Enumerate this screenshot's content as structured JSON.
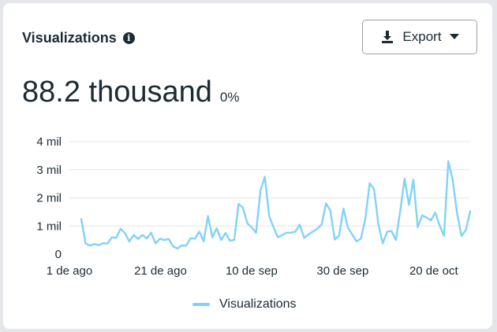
{
  "header": {
    "title": "Visualizations",
    "export_label": "Export"
  },
  "summary": {
    "value": "88.2 thousand",
    "change": "0%"
  },
  "colors": {
    "line": "#82d2f7",
    "grid": "#e3e6ea",
    "axis_text": "#1c2b33"
  },
  "icons": {
    "info": "info-icon",
    "download": "download-icon",
    "caret": "caret-down-icon"
  },
  "chart_data": {
    "type": "line",
    "title": "",
    "xlabel": "",
    "ylabel": "",
    "ylim": [
      0,
      4000
    ],
    "y_ticks": [
      {
        "value": 0,
        "label": "0"
      },
      {
        "value": 1000,
        "label": "1 mil"
      },
      {
        "value": 2000,
        "label": "2 mil"
      },
      {
        "value": 3000,
        "label": "3 mil"
      },
      {
        "value": 4000,
        "label": "4 mil"
      }
    ],
    "x_ticks": [
      {
        "date": "2024-08-01",
        "label": "1 de ago"
      },
      {
        "date": "2024-08-21",
        "label": "21 de ago"
      },
      {
        "date": "2024-09-10",
        "label": "10 de sep"
      },
      {
        "date": "2024-09-30",
        "label": "30 de sep"
      },
      {
        "date": "2024-10-20",
        "label": "20 de oct"
      }
    ],
    "x_start": "2024-08-01",
    "x_end": "2024-10-28",
    "legend_position": "bottom",
    "grid": true,
    "series": [
      {
        "name": "Visualizations",
        "values": [
          1250,
          380,
          300,
          360,
          320,
          390,
          370,
          600,
          580,
          900,
          750,
          450,
          680,
          540,
          680,
          560,
          760,
          380,
          550,
          500,
          540,
          280,
          200,
          310,
          300,
          560,
          550,
          800,
          450,
          1350,
          600,
          920,
          500,
          750,
          480,
          500,
          1780,
          1650,
          1100,
          950,
          760,
          2250,
          2750,
          1350,
          950,
          600,
          680,
          760,
          760,
          800,
          1050,
          580,
          700,
          800,
          900,
          1050,
          1800,
          1550,
          520,
          650,
          1620,
          950,
          700,
          450,
          550,
          1250,
          2520,
          2320,
          1050,
          380,
          800,
          820,
          500,
          1550,
          2680,
          1750,
          2650,
          950,
          1380,
          1300,
          1200,
          1470,
          1030,
          650,
          3300,
          2650,
          1450,
          650,
          850,
          1520
        ]
      }
    ]
  }
}
